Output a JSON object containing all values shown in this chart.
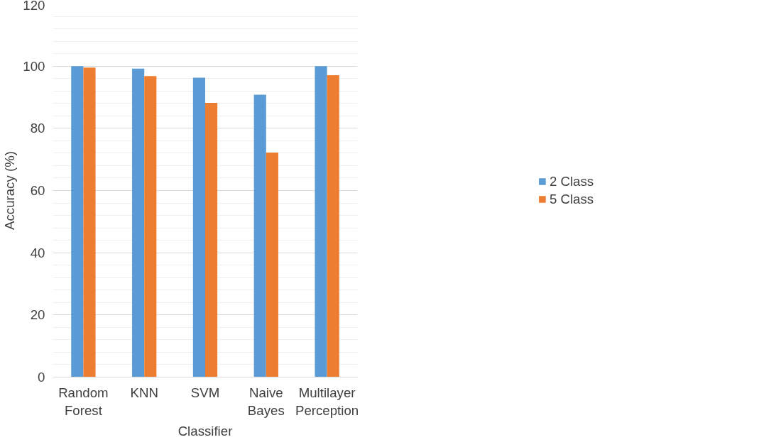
{
  "chart_data": {
    "type": "bar",
    "xlabel": "Classifier",
    "ylabel": "Accuracy (%)",
    "categories": [
      "Random Forest",
      "KNN",
      "SVM",
      "Naive Bayes",
      "Multilayer Perception"
    ],
    "series": [
      {
        "name": "2 Class",
        "color": "#5b9bd5",
        "values": [
          100,
          99.2,
          96.3,
          90.8,
          100
        ]
      },
      {
        "name": "5 Class",
        "color": "#ed7d31",
        "values": [
          99.5,
          96.8,
          88.2,
          72.2,
          97.1
        ]
      }
    ],
    "ylim": [
      0,
      120
    ],
    "yticks": [
      0,
      20,
      40,
      60,
      80,
      100,
      120
    ],
    "grid": "y",
    "legend": "right"
  }
}
